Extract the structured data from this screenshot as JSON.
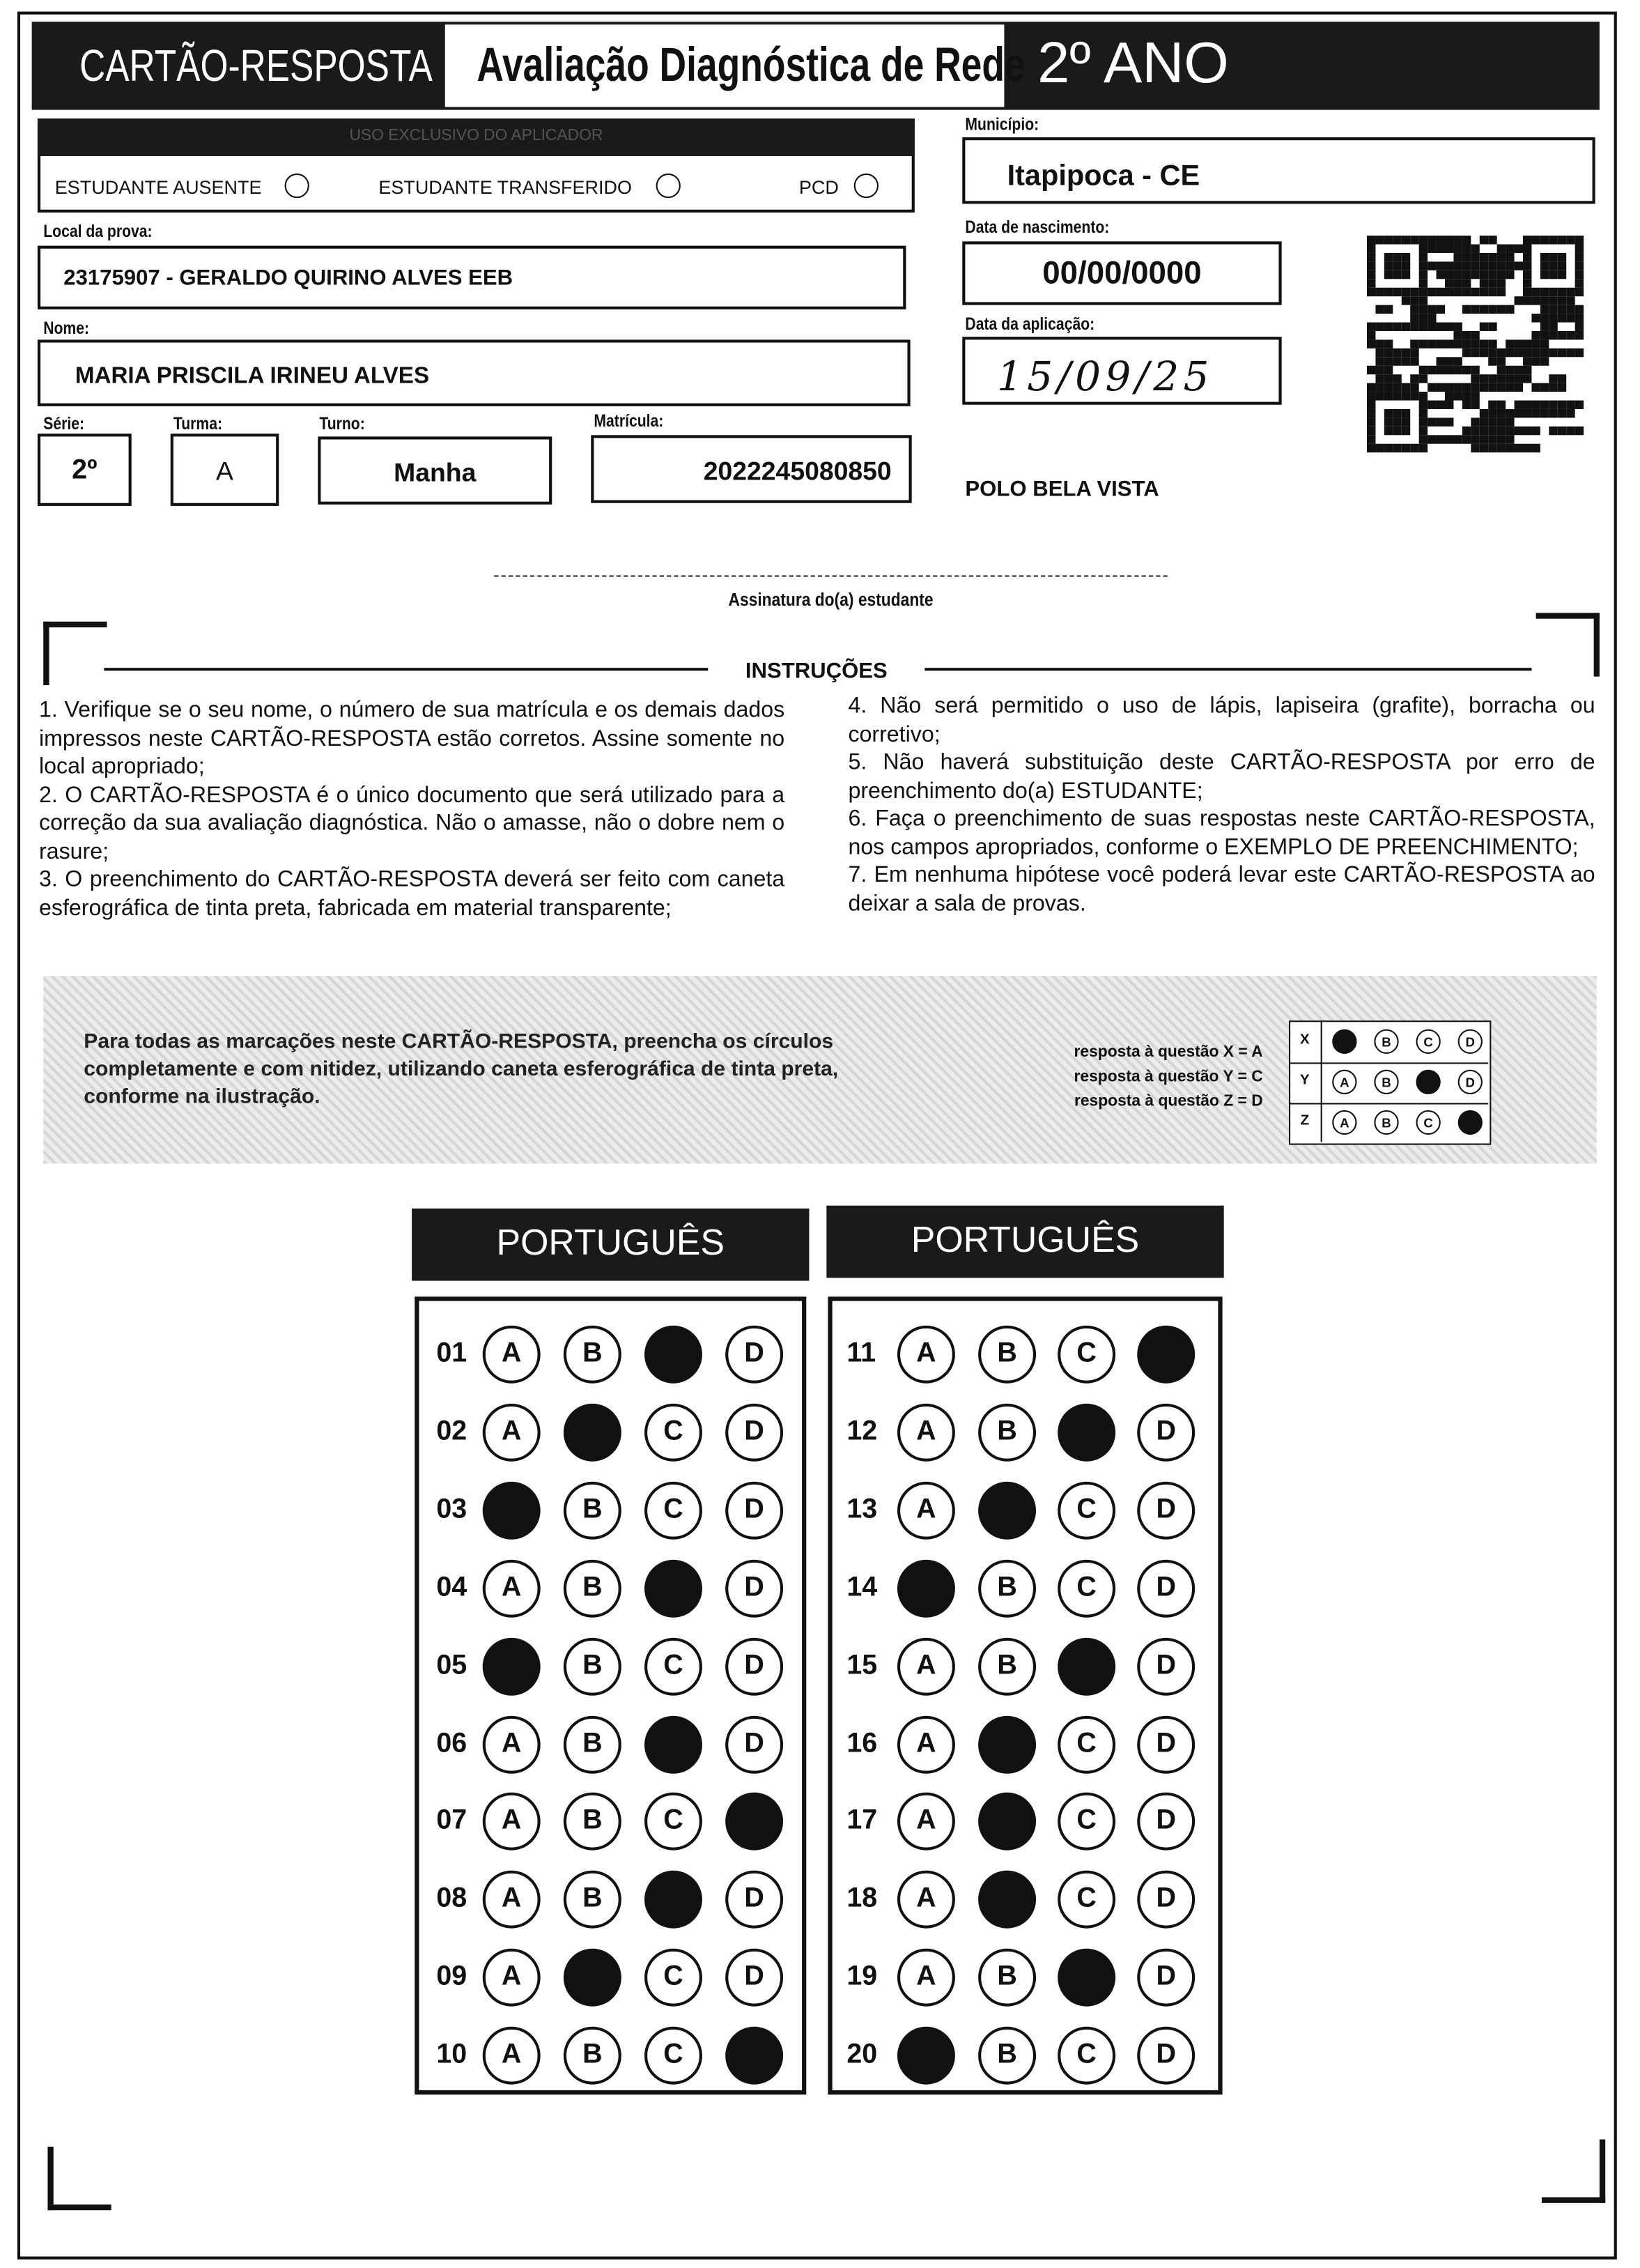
{
  "header": {
    "label": "CARTÃO-RESPOSTA",
    "title": "Avaliação Diagnóstica de Rede",
    "grade": "2º ANO"
  },
  "applicator": {
    "title": "USO EXCLUSIVO DO APLICADOR",
    "options": [
      "ESTUDANTE AUSENTE",
      "ESTUDANTE TRANSFERIDO",
      "PCD"
    ]
  },
  "fields": {
    "municipio": {
      "label": "Município:",
      "value": "Itapipoca - CE"
    },
    "local": {
      "label": "Local da prova:",
      "value": "23175907 - GERALDO QUIRINO ALVES EEB"
    },
    "nascimento": {
      "label": "Data de nascimento:",
      "value": "00/00/0000"
    },
    "nome": {
      "label": "Nome:",
      "value": "MARIA PRISCILA IRINEU ALVES"
    },
    "aplicacao": {
      "label": "Data da aplicação:",
      "value": "15/09/25"
    },
    "serie": {
      "label": "Série:",
      "value": "2º"
    },
    "turma": {
      "label": "Turma:",
      "value": "A"
    },
    "turno": {
      "label": "Turno:",
      "value": "Manha"
    },
    "matricula": {
      "label": "Matrícula:",
      "value": "2022245080850"
    }
  },
  "polo": "POLO BELA VISTA",
  "signature": "Assinatura do(a) estudante",
  "instructions": {
    "title": "INSTRUÇÕES",
    "items": [
      "1. Verifique se o seu nome, o número de sua matrícula e os demais dados impressos neste CARTÃO-RESPOSTA estão corretos. Assine somente no local apropriado;",
      "2. O CARTÃO-RESPOSTA é o único documento que será utilizado para a correção da sua avaliação diagnóstica. Não o amasse, não o dobre nem o rasure;",
      "3. O preenchimento do CARTÃO-RESPOSTA deverá ser feito com caneta esferográfica de tinta preta, fabricada em material transparente;",
      "4. Não será permitido o uso de lápis, lapiseira (grafite), borracha ou corretivo;",
      "5. Não haverá substituição deste CARTÃO-RESPOSTA por erro de preenchimento do(a) ESTUDANTE;",
      "6. Faça o preenchimento de suas respostas neste CARTÃO-RESPOSTA, nos campos apropriados, conforme o EXEMPLO DE PREENCHIMENTO;",
      "7. Em nenhuma hipótese você poderá levar este CARTÃO-RESPOSTA ao deixar a sala de provas."
    ]
  },
  "example": {
    "text": "Para todas as marcações neste CARTÃO-RESPOSTA, preencha os círculos completamente e com nitidez, utilizando caneta esferográfica de tinta preta, conforme na ilustração.",
    "captions": [
      "resposta à questão X = A",
      "resposta à questão Y = C",
      "resposta à questão Z = D"
    ],
    "rows": [
      {
        "label": "X",
        "options": [
          null,
          "B",
          "C",
          "D"
        ]
      },
      {
        "label": "Y",
        "options": [
          "A",
          "B",
          null,
          "D"
        ]
      },
      {
        "label": "Z",
        "options": [
          "A",
          "B",
          "C",
          null
        ]
      }
    ]
  },
  "sections": [
    {
      "title": "PORTUGUÊS",
      "questions": [
        {
          "number": "01",
          "options": [
            "A",
            "B",
            null,
            "D"
          ]
        },
        {
          "number": "02",
          "options": [
            "A",
            null,
            "C",
            "D"
          ]
        },
        {
          "number": "03",
          "options": [
            null,
            "B",
            "C",
            "D"
          ]
        },
        {
          "number": "04",
          "options": [
            "A",
            "B",
            null,
            "D"
          ]
        },
        {
          "number": "05",
          "options": [
            null,
            "B",
            "C",
            "D"
          ]
        },
        {
          "number": "06",
          "options": [
            "A",
            "B",
            null,
            "D"
          ]
        },
        {
          "number": "07",
          "options": [
            "A",
            "B",
            "C",
            null
          ]
        },
        {
          "number": "08",
          "options": [
            "A",
            "B",
            null,
            "D"
          ]
        },
        {
          "number": "09",
          "options": [
            "A",
            null,
            "C",
            "D"
          ]
        },
        {
          "number": "10",
          "options": [
            "A",
            "B",
            "C",
            null
          ]
        }
      ]
    },
    {
      "title": "PORTUGUÊS",
      "questions": [
        {
          "number": "11",
          "options": [
            "A",
            "B",
            "C",
            null
          ]
        },
        {
          "number": "12",
          "options": [
            "A",
            "B",
            null,
            "D"
          ]
        },
        {
          "number": "13",
          "options": [
            "A",
            null,
            "C",
            "D"
          ]
        },
        {
          "number": "14",
          "options": [
            null,
            "B",
            "C",
            "D"
          ]
        },
        {
          "number": "15",
          "options": [
            "A",
            "B",
            null,
            "D"
          ]
        },
        {
          "number": "16",
          "options": [
            "A",
            null,
            "C",
            "D"
          ]
        },
        {
          "number": "17",
          "options": [
            "A",
            null,
            "C",
            "D"
          ]
        },
        {
          "number": "18",
          "options": [
            "A",
            null,
            "C",
            "D"
          ]
        },
        {
          "number": "19",
          "options": [
            "A",
            "B",
            null,
            "D"
          ]
        },
        {
          "number": "20",
          "options": [
            null,
            "B",
            "C",
            "D"
          ]
        }
      ]
    }
  ]
}
